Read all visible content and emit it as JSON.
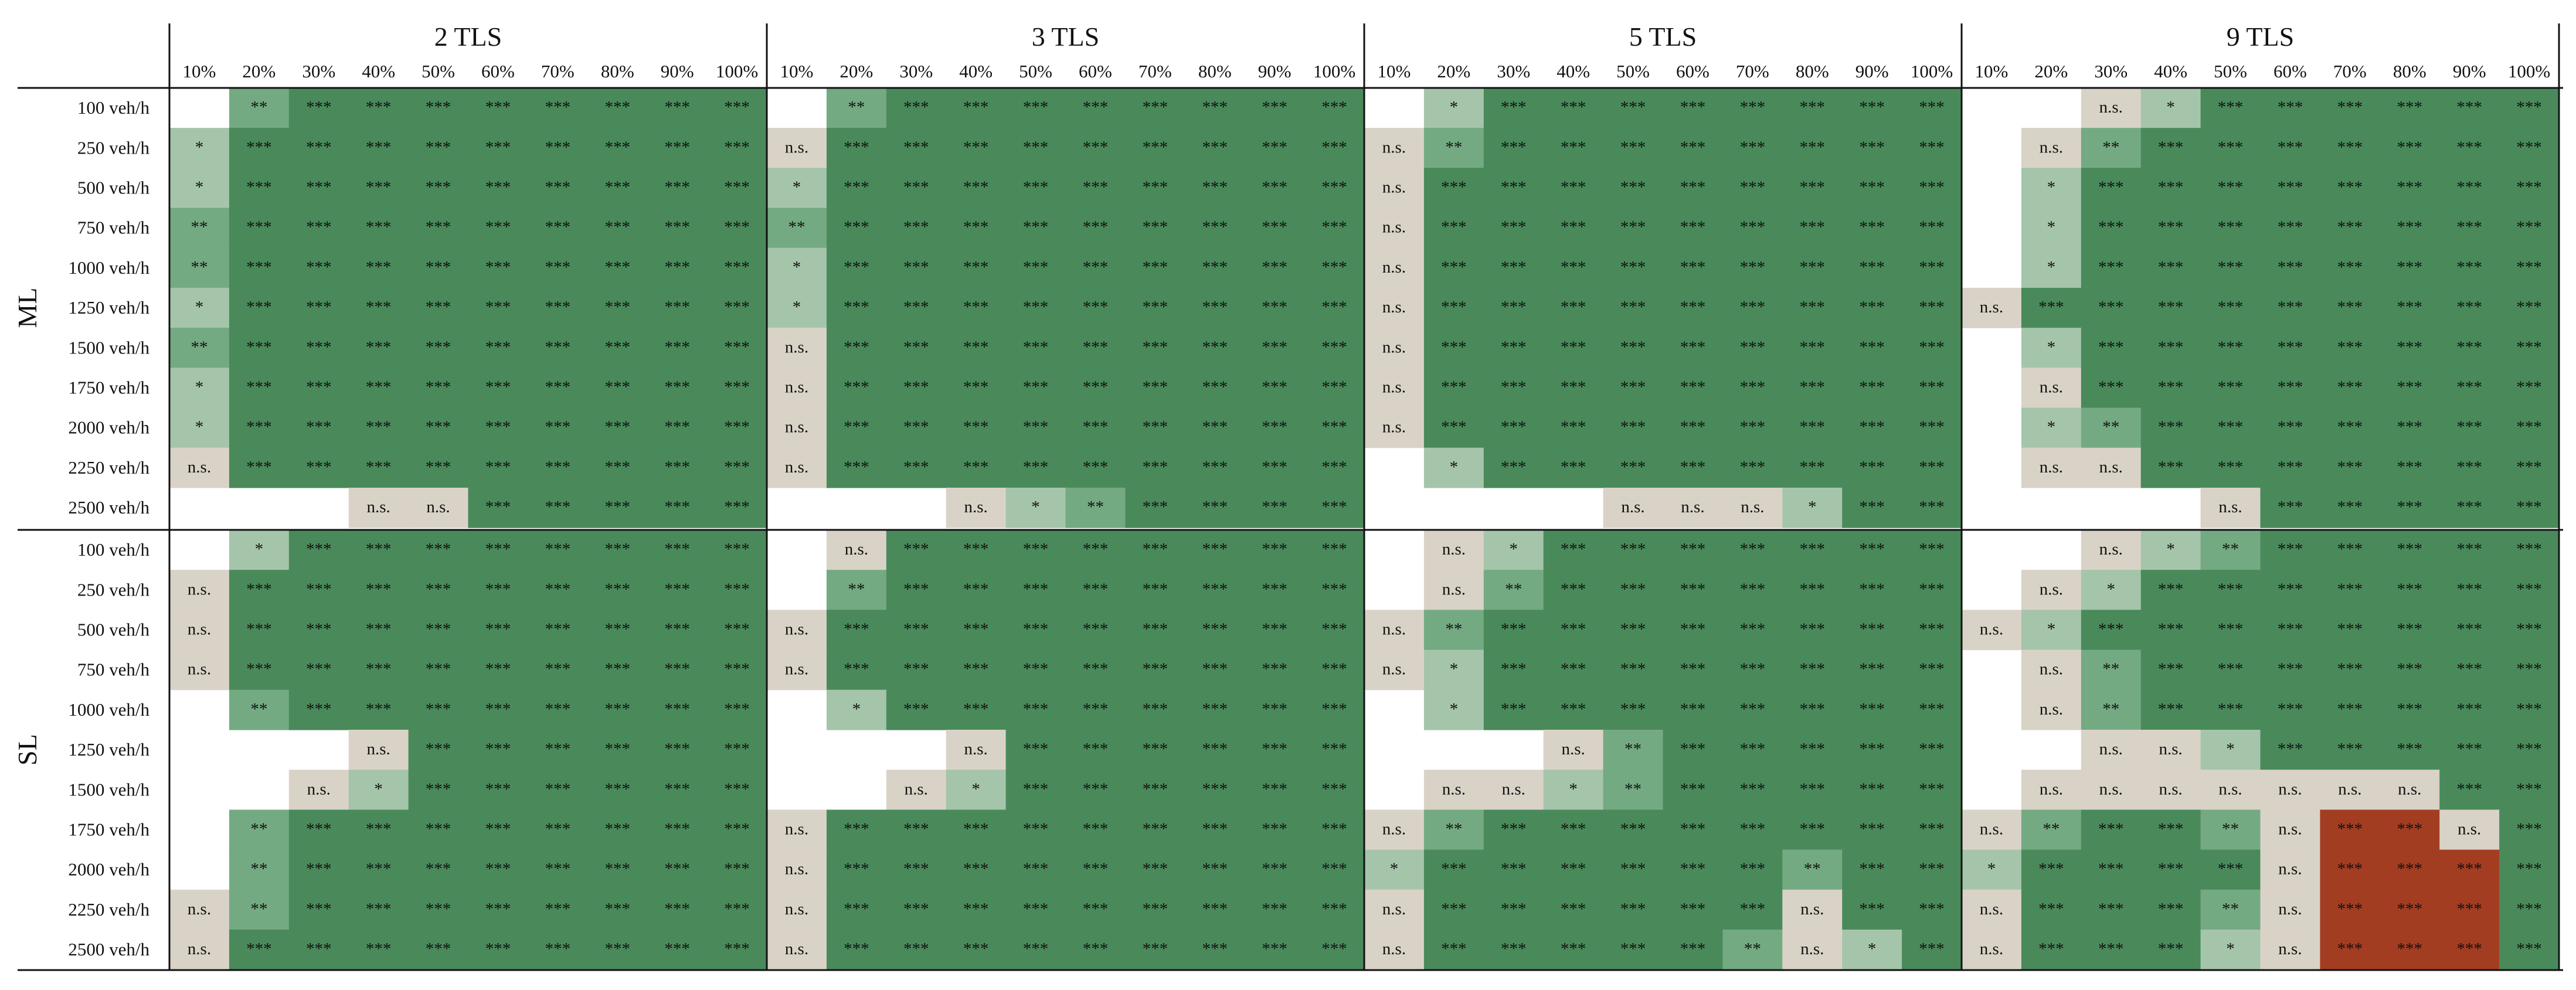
{
  "chart_data": {
    "type": "heatmap",
    "groups": [
      "2 TLS",
      "3 TLS",
      "5 TLS",
      "9 TLS"
    ],
    "percentages": [
      "10%",
      "20%",
      "30%",
      "40%",
      "50%",
      "60%",
      "70%",
      "80%",
      "90%",
      "100%"
    ],
    "sections": [
      {
        "name": "ML",
        "rows": [
          "100 veh/h",
          "250 veh/h",
          "500 veh/h",
          "750 veh/h",
          "1000 veh/h",
          "1250 veh/h",
          "1500 veh/h",
          "1750 veh/h",
          "2000 veh/h",
          "2250 veh/h",
          "2500 veh/h"
        ]
      },
      {
        "name": "SL",
        "rows": [
          "100 veh/h",
          "250 veh/h",
          "500 veh/h",
          "750 veh/h",
          "1000 veh/h",
          "1250 veh/h",
          "1500 veh/h",
          "1750 veh/h",
          "2000 veh/h",
          "2250 veh/h",
          "2500 veh/h"
        ]
      }
    ],
    "cell_colors": {
      "***": "#4a8a5a",
      "**": "#74aa82",
      "*": "#a5c5ab",
      "n.s.": "#d9d3c7",
      "***neg": "#a33d22",
      "blank": "#ffffff"
    },
    "values": [
      [
        [
          "",
          "**",
          "***",
          "***",
          "***",
          "***",
          "***",
          "***",
          "***",
          "***",
          "",
          "**",
          "***",
          "***",
          "***",
          "***",
          "***",
          "***",
          "***",
          "***",
          "",
          "*",
          "***",
          "***",
          "***",
          "***",
          "***",
          "***",
          "***",
          "***",
          "",
          "",
          "n.s.",
          "*",
          "***",
          "***",
          "***",
          "***",
          "***",
          "***"
        ],
        [
          "*",
          "***",
          "***",
          "***",
          "***",
          "***",
          "***",
          "***",
          "***",
          "***",
          "n.s.",
          "***",
          "***",
          "***",
          "***",
          "***",
          "***",
          "***",
          "***",
          "***",
          "n.s.",
          "**",
          "***",
          "***",
          "***",
          "***",
          "***",
          "***",
          "***",
          "***",
          "",
          "n.s.",
          "**",
          "***",
          "***",
          "***",
          "***",
          "***",
          "***",
          "***"
        ],
        [
          "*",
          "***",
          "***",
          "***",
          "***",
          "***",
          "***",
          "***",
          "***",
          "***",
          "*",
          "***",
          "***",
          "***",
          "***",
          "***",
          "***",
          "***",
          "***",
          "***",
          "n.s.",
          "***",
          "***",
          "***",
          "***",
          "***",
          "***",
          "***",
          "***",
          "***",
          "",
          "*",
          "***",
          "***",
          "***",
          "***",
          "***",
          "***",
          "***",
          "***"
        ],
        [
          "**",
          "***",
          "***",
          "***",
          "***",
          "***",
          "***",
          "***",
          "***",
          "***",
          "**",
          "***",
          "***",
          "***",
          "***",
          "***",
          "***",
          "***",
          "***",
          "***",
          "n.s.",
          "***",
          "***",
          "***",
          "***",
          "***",
          "***",
          "***",
          "***",
          "***",
          "",
          "*",
          "***",
          "***",
          "***",
          "***",
          "***",
          "***",
          "***",
          "***"
        ],
        [
          "**",
          "***",
          "***",
          "***",
          "***",
          "***",
          "***",
          "***",
          "***",
          "***",
          "*",
          "***",
          "***",
          "***",
          "***",
          "***",
          "***",
          "***",
          "***",
          "***",
          "n.s.",
          "***",
          "***",
          "***",
          "***",
          "***",
          "***",
          "***",
          "***",
          "***",
          "",
          "*",
          "***",
          "***",
          "***",
          "***",
          "***",
          "***",
          "***",
          "***"
        ],
        [
          "*",
          "***",
          "***",
          "***",
          "***",
          "***",
          "***",
          "***",
          "***",
          "***",
          "*",
          "***",
          "***",
          "***",
          "***",
          "***",
          "***",
          "***",
          "***",
          "***",
          "n.s.",
          "***",
          "***",
          "***",
          "***",
          "***",
          "***",
          "***",
          "***",
          "***",
          "n.s.",
          "***",
          "***",
          "***",
          "***",
          "***",
          "***",
          "***",
          "***",
          "***"
        ],
        [
          "**",
          "***",
          "***",
          "***",
          "***",
          "***",
          "***",
          "***",
          "***",
          "***",
          "n.s.",
          "***",
          "***",
          "***",
          "***",
          "***",
          "***",
          "***",
          "***",
          "***",
          "n.s.",
          "***",
          "***",
          "***",
          "***",
          "***",
          "***",
          "***",
          "***",
          "***",
          "",
          "*",
          "***",
          "***",
          "***",
          "***",
          "***",
          "***",
          "***",
          "***"
        ],
        [
          "*",
          "***",
          "***",
          "***",
          "***",
          "***",
          "***",
          "***",
          "***",
          "***",
          "n.s.",
          "***",
          "***",
          "***",
          "***",
          "***",
          "***",
          "***",
          "***",
          "***",
          "n.s.",
          "***",
          "***",
          "***",
          "***",
          "***",
          "***",
          "***",
          "***",
          "***",
          "",
          "n.s.",
          "***",
          "***",
          "***",
          "***",
          "***",
          "***",
          "***",
          "***"
        ],
        [
          "*",
          "***",
          "***",
          "***",
          "***",
          "***",
          "***",
          "***",
          "***",
          "***",
          "n.s.",
          "***",
          "***",
          "***",
          "***",
          "***",
          "***",
          "***",
          "***",
          "***",
          "n.s.",
          "***",
          "***",
          "***",
          "***",
          "***",
          "***",
          "***",
          "***",
          "***",
          "",
          "*",
          "**",
          "***",
          "***",
          "***",
          "***",
          "***",
          "***",
          "***"
        ],
        [
          "n.s.",
          "***",
          "***",
          "***",
          "***",
          "***",
          "***",
          "***",
          "***",
          "***",
          "n.s.",
          "***",
          "***",
          "***",
          "***",
          "***",
          "***",
          "***",
          "***",
          "***",
          "",
          "*",
          "***",
          "***",
          "***",
          "***",
          "***",
          "***",
          "***",
          "***",
          "",
          "n.s.",
          "n.s.",
          "***",
          "***",
          "***",
          "***",
          "***",
          "***",
          "***"
        ],
        [
          "",
          "",
          "",
          "n.s.",
          "n.s.",
          "***",
          "***",
          "***",
          "***",
          "***",
          "",
          "",
          "",
          "n.s.",
          "*",
          "**",
          "***",
          "***",
          "***",
          "***",
          "",
          "",
          "",
          "",
          "n.s.",
          "n.s.",
          "n.s.",
          "*",
          "***",
          "***",
          "",
          "",
          "",
          "",
          "n.s.",
          "***",
          "***",
          "***",
          "***",
          "***"
        ]
      ],
      [
        [
          "",
          "*",
          "***",
          "***",
          "***",
          "***",
          "***",
          "***",
          "***",
          "***",
          "",
          "n.s.",
          "***",
          "***",
          "***",
          "***",
          "***",
          "***",
          "***",
          "***",
          "",
          "n.s.",
          "*",
          "***",
          "***",
          "***",
          "***",
          "***",
          "***",
          "***",
          "",
          "",
          "n.s.",
          "*",
          "**",
          "***",
          "***",
          "***",
          "***",
          "***"
        ],
        [
          "n.s.",
          "***",
          "***",
          "***",
          "***",
          "***",
          "***",
          "***",
          "***",
          "***",
          "",
          "**",
          "***",
          "***",
          "***",
          "***",
          "***",
          "***",
          "***",
          "***",
          "",
          "n.s.",
          "**",
          "***",
          "***",
          "***",
          "***",
          "***",
          "***",
          "***",
          "",
          "n.s.",
          "*",
          "***",
          "***",
          "***",
          "***",
          "***",
          "***",
          "***"
        ],
        [
          "n.s.",
          "***",
          "***",
          "***",
          "***",
          "***",
          "***",
          "***",
          "***",
          "***",
          "n.s.",
          "***",
          "***",
          "***",
          "***",
          "***",
          "***",
          "***",
          "***",
          "***",
          "n.s.",
          "**",
          "***",
          "***",
          "***",
          "***",
          "***",
          "***",
          "***",
          "***",
          "n.s.",
          "*",
          "***",
          "***",
          "***",
          "***",
          "***",
          "***",
          "***",
          "***"
        ],
        [
          "n.s.",
          "***",
          "***",
          "***",
          "***",
          "***",
          "***",
          "***",
          "***",
          "***",
          "n.s.",
          "***",
          "***",
          "***",
          "***",
          "***",
          "***",
          "***",
          "***",
          "***",
          "n.s.",
          "*",
          "***",
          "***",
          "***",
          "***",
          "***",
          "***",
          "***",
          "***",
          "",
          "n.s.",
          "**",
          "***",
          "***",
          "***",
          "***",
          "***",
          "***",
          "***"
        ],
        [
          "",
          "**",
          "***",
          "***",
          "***",
          "***",
          "***",
          "***",
          "***",
          "***",
          "",
          "*",
          "***",
          "***",
          "***",
          "***",
          "***",
          "***",
          "***",
          "***",
          "",
          "*",
          "***",
          "***",
          "***",
          "***",
          "***",
          "***",
          "***",
          "***",
          "",
          "n.s.",
          "**",
          "***",
          "***",
          "***",
          "***",
          "***",
          "***",
          "***"
        ],
        [
          "",
          "",
          "",
          "n.s.",
          "***",
          "***",
          "***",
          "***",
          "***",
          "***",
          "",
          "",
          "",
          "n.s.",
          "***",
          "***",
          "***",
          "***",
          "***",
          "***",
          "",
          "",
          "",
          "n.s.",
          "**",
          "***",
          "***",
          "***",
          "***",
          "***",
          "",
          "",
          "n.s.",
          "n.s.",
          "*",
          "***",
          "***",
          "***",
          "***",
          "***"
        ],
        [
          "",
          "",
          "n.s.",
          "*",
          "***",
          "***",
          "***",
          "***",
          "***",
          "***",
          "",
          "",
          "n.s.",
          "*",
          "***",
          "***",
          "***",
          "***",
          "***",
          "***",
          "",
          "n.s.",
          "n.s.",
          "*",
          "**",
          "***",
          "***",
          "***",
          "***",
          "***",
          "",
          "n.s.",
          "n.s.",
          "n.s.",
          "n.s.",
          "n.s.",
          "n.s.",
          "n.s.",
          "***",
          "***"
        ],
        [
          "",
          "**",
          "***",
          "***",
          "***",
          "***",
          "***",
          "***",
          "***",
          "***",
          "n.s.",
          "***",
          "***",
          "***",
          "***",
          "***",
          "***",
          "***",
          "***",
          "***",
          "n.s.",
          "**",
          "***",
          "***",
          "***",
          "***",
          "***",
          "***",
          "***",
          "***",
          "n.s.",
          "**",
          "***",
          "***",
          "**",
          "n.s.",
          "***neg",
          "***neg",
          "n.s.",
          "***"
        ],
        [
          "",
          "**",
          "***",
          "***",
          "***",
          "***",
          "***",
          "***",
          "***",
          "***",
          "n.s.",
          "***",
          "***",
          "***",
          "***",
          "***",
          "***",
          "***",
          "***",
          "***",
          "*",
          "***",
          "***",
          "***",
          "***",
          "***",
          "***",
          "**",
          "***",
          "***",
          "*",
          "***",
          "***",
          "***",
          "***",
          "n.s.",
          "***neg",
          "***neg",
          "***neg",
          "***"
        ],
        [
          "n.s.",
          "**",
          "***",
          "***",
          "***",
          "***",
          "***",
          "***",
          "***",
          "***",
          "n.s.",
          "***",
          "***",
          "***",
          "***",
          "***",
          "***",
          "***",
          "***",
          "***",
          "n.s.",
          "***",
          "***",
          "***",
          "***",
          "***",
          "***",
          "n.s.",
          "***",
          "***",
          "n.s.",
          "***",
          "***",
          "***",
          "**",
          "n.s.",
          "***neg",
          "***neg",
          "***neg",
          "***"
        ],
        [
          "n.s.",
          "***",
          "***",
          "***",
          "***",
          "***",
          "***",
          "***",
          "***",
          "***",
          "n.s.",
          "***",
          "***",
          "***",
          "***",
          "***",
          "***",
          "***",
          "***",
          "***",
          "n.s.",
          "***",
          "***",
          "***",
          "***",
          "***",
          "**",
          "n.s.",
          "*",
          "***",
          "n.s.",
          "***",
          "***",
          "***",
          "*",
          "n.s.",
          "***neg",
          "***neg",
          "***neg",
          "***"
        ]
      ]
    ]
  }
}
